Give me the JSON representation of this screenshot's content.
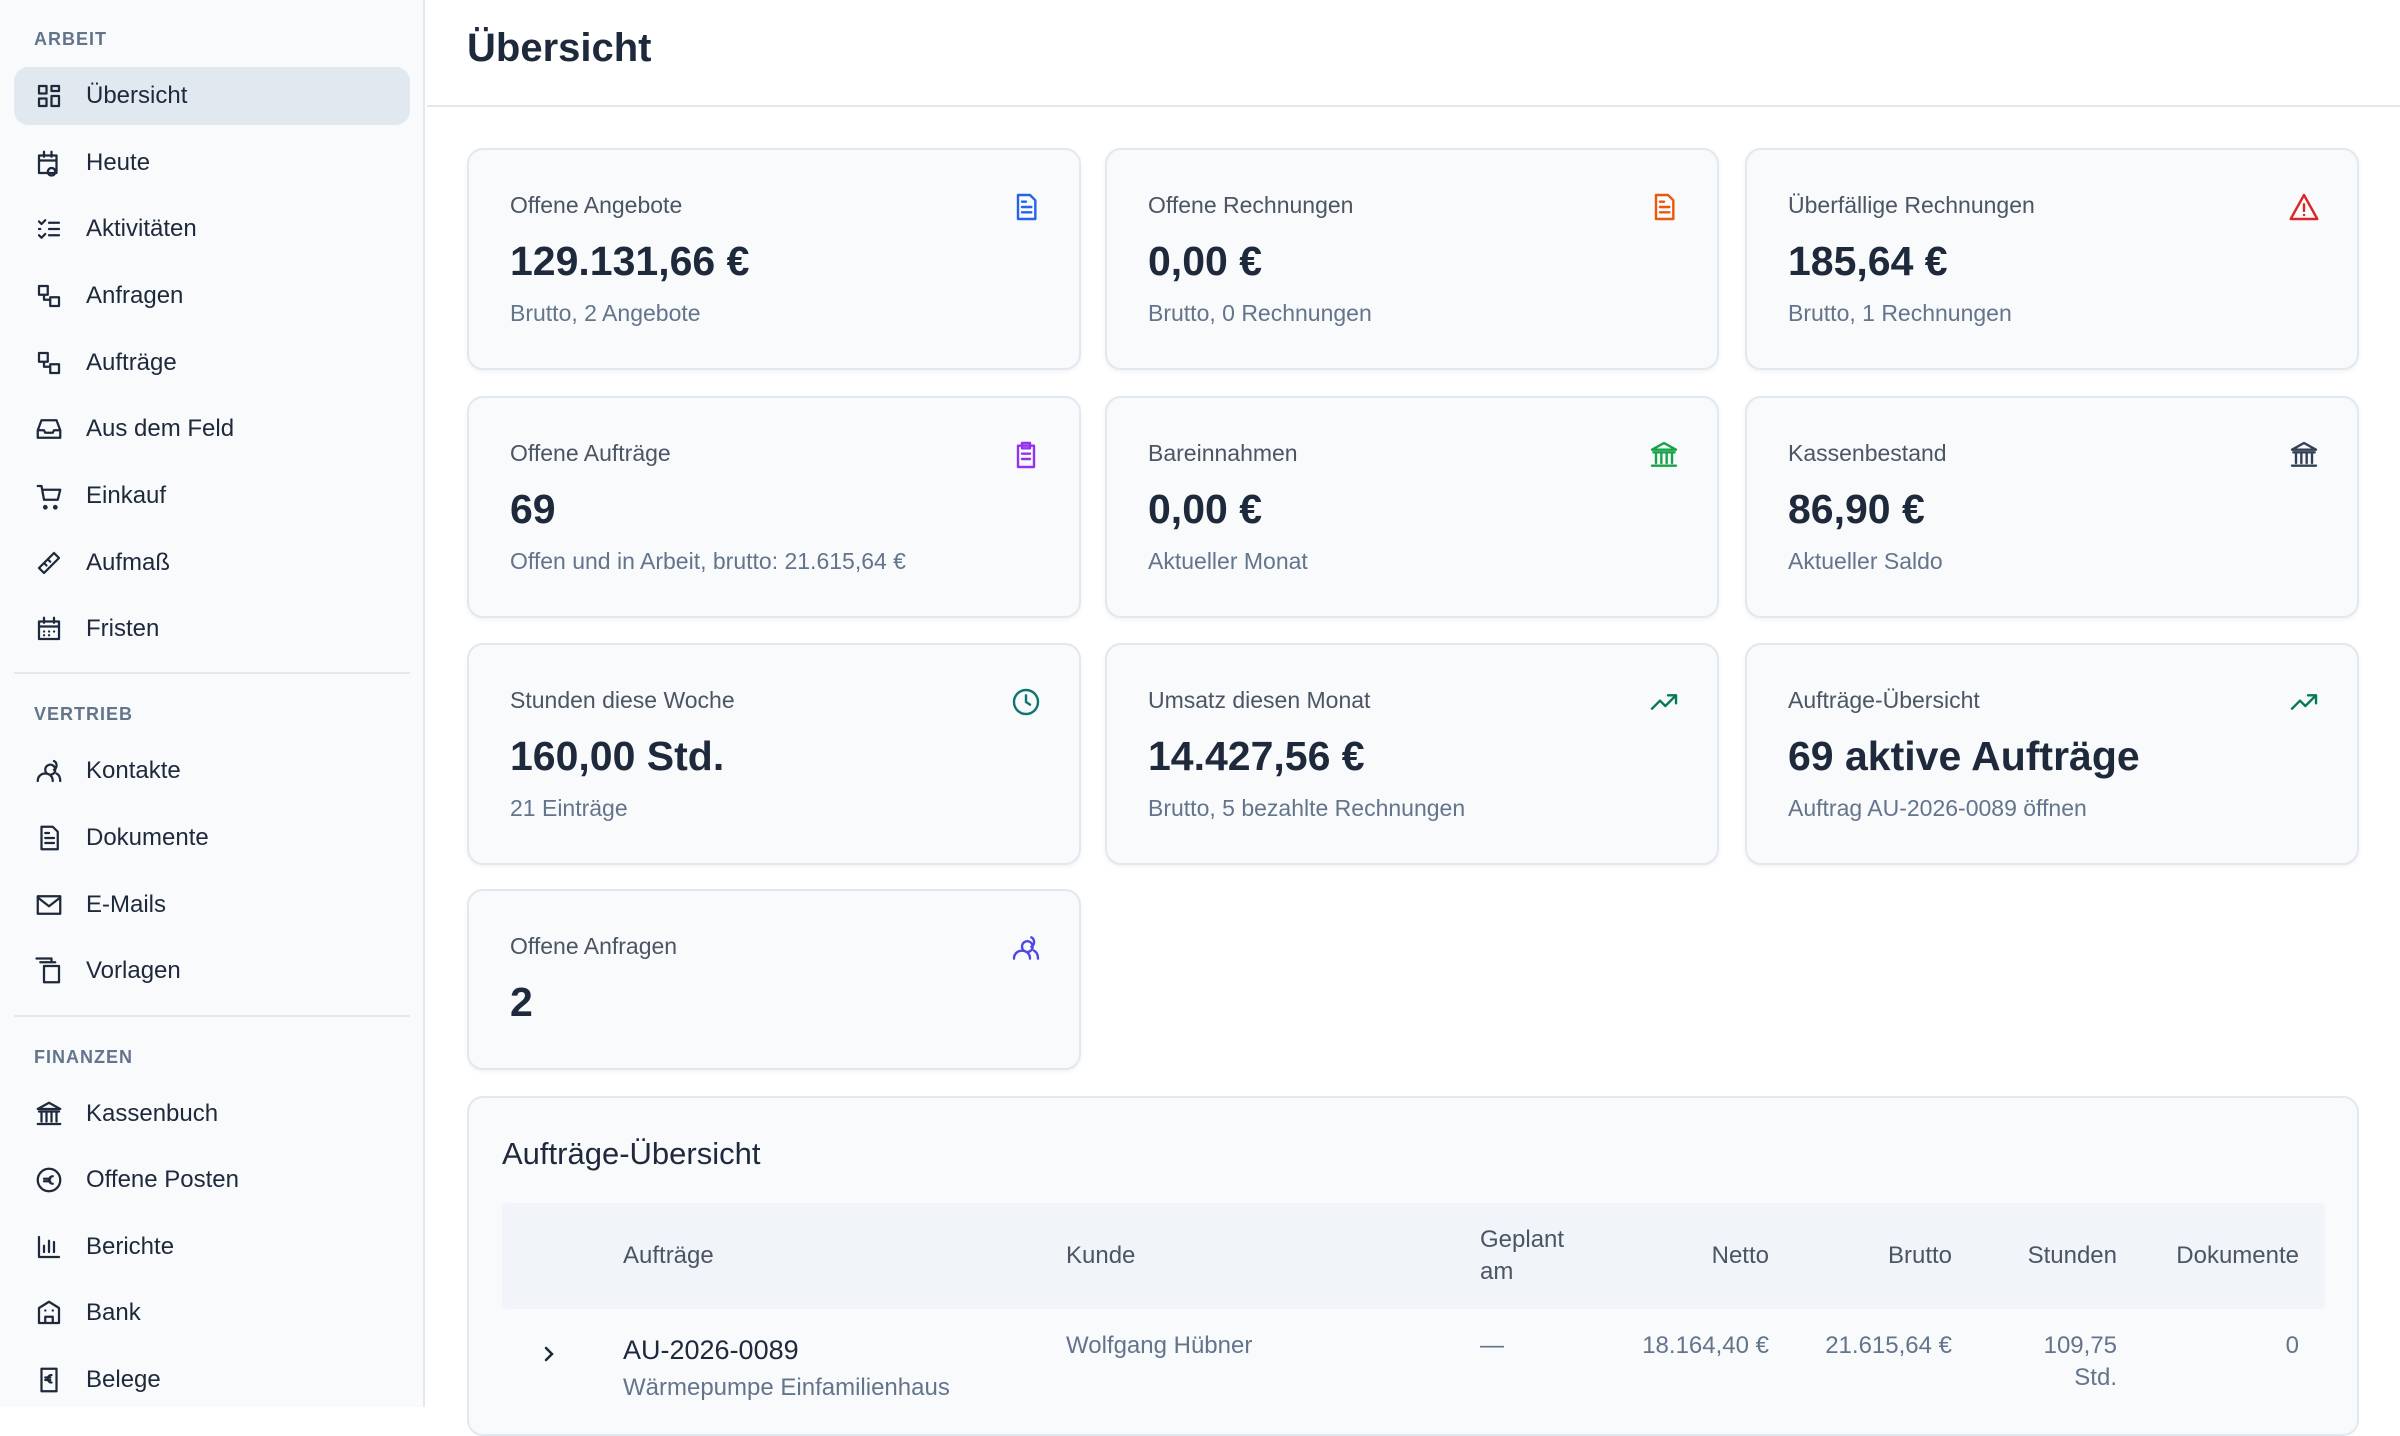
{
  "sidebar": {
    "sections": [
      {
        "title": "ARBEIT",
        "items": [
          "Übersicht",
          "Heute",
          "Aktivitäten",
          "Anfragen",
          "Aufträge",
          "Aus dem Feld",
          "Einkauf",
          "Aufmaß",
          "Fristen"
        ]
      },
      {
        "title": "VERTRIEB",
        "items": [
          "Kontakte",
          "Dokumente",
          "E-Mails",
          "Vorlagen"
        ]
      },
      {
        "title": "FINANZEN",
        "items": [
          "Kassenbuch",
          "Offene Posten",
          "Berichte",
          "Bank",
          "Belege"
        ]
      }
    ]
  },
  "header": {
    "title": "Übersicht"
  },
  "cards": [
    {
      "label": "Offene Angebote",
      "value": "129.131,66 €",
      "sub": "Brutto, 2 Angebote"
    },
    {
      "label": "Offene Rechnungen",
      "value": "0,00 €",
      "sub": "Brutto, 0 Rechnungen"
    },
    {
      "label": "Überfällige Rechnungen",
      "value": "185,64 €",
      "sub": "Brutto, 1 Rechnungen"
    },
    {
      "label": "Offene Aufträge",
      "value": "69",
      "sub": "Offen und in Arbeit, brutto: 21.615,64 €"
    },
    {
      "label": "Bareinnahmen",
      "value": "0,00 €",
      "sub": "Aktueller Monat"
    },
    {
      "label": "Kassenbestand",
      "value": "86,90 €",
      "sub": "Aktueller Saldo"
    },
    {
      "label": "Stunden diese Woche",
      "value": "160,00 Std.",
      "sub": "21 Einträge"
    },
    {
      "label": "Umsatz diesen Monat",
      "value": "14.427,56 €",
      "sub": "Brutto, 5 bezahlte Rechnungen"
    },
    {
      "label": "Aufträge-Übersicht",
      "value": "69 aktive Aufträge",
      "sub": "Auftrag AU-2026-0089 öffnen"
    },
    {
      "label": "Offene Anfragen",
      "value": "2"
    }
  ],
  "table": {
    "title": "Aufträge-Übersicht",
    "columns": [
      "Aufträge",
      "Kunde",
      "Geplant am",
      "Netto",
      "Brutto",
      "Stunden",
      "Dokumente"
    ],
    "rows": [
      [
        "AU-2026-0089",
        "Wolfgang Hübner",
        "—",
        "18.164,40 €",
        "21.615,64 €",
        "109,75 Std.",
        "0"
      ]
    ],
    "row_subtitles": [
      "Wärmepumpe Einfamilienhaus"
    ]
  }
}
